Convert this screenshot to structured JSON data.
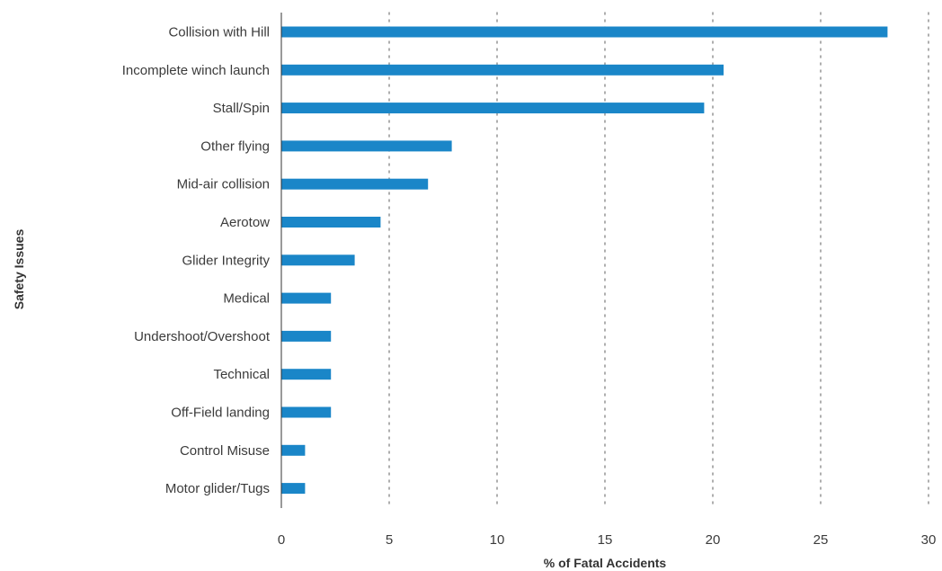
{
  "chart_data": {
    "type": "bar",
    "orientation": "horizontal",
    "title": "",
    "xlabel": "% of Fatal Accidents",
    "ylabel": "Safety Issues",
    "xlim": [
      0,
      30
    ],
    "xticks": [
      0,
      5,
      10,
      15,
      20,
      25,
      30
    ],
    "grid": "vertical-dotted",
    "categories": [
      "Collision with Hill",
      "Incomplete winch launch",
      "Stall/Spin",
      "Other flying",
      "Mid-air collision",
      "Aerotow",
      "Glider Integrity",
      "Medical",
      "Undershoot/Overshoot",
      "Technical",
      "Off-Field landing",
      "Control Misuse",
      "Motor glider/Tugs"
    ],
    "values": [
      28.1,
      20.5,
      19.6,
      7.9,
      6.8,
      4.6,
      3.4,
      2.3,
      2.3,
      2.3,
      2.3,
      1.1,
      1.1
    ],
    "colors": {
      "bar": "#1a86c8",
      "grid": "#9a9a9a",
      "axis": "#333333",
      "text": "#3b3b3b"
    }
  }
}
